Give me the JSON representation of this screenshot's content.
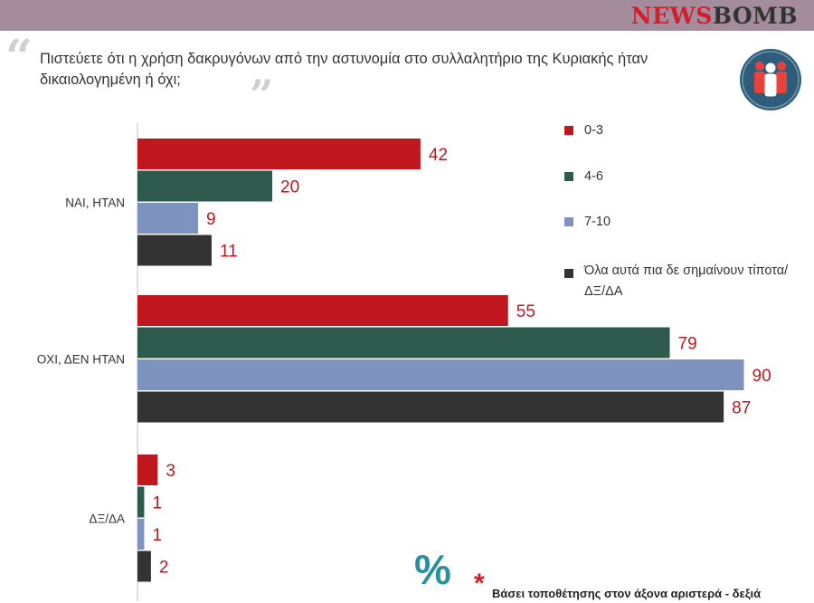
{
  "header": {
    "brand_news": "NEWS",
    "brand_bomb": "BOMB"
  },
  "question": {
    "text": "Πιστεύετε ότι η χρήση δακρυγόνων από την αστυνομία στο συλλαλητήριο της Κυριακής ήταν δικαιολογημένη ή όχι;",
    "open_quote_glyph": "“",
    "close_quote_glyph": "”"
  },
  "icons": {
    "people": "people-group-icon",
    "percent": "percent-icon",
    "asterisk": "asterisk-icon"
  },
  "percent_symbol": "%",
  "footnote": {
    "star": "*",
    "text": "Βάσει τοποθέτησης στον άξονα αριστερά - δεξιά"
  },
  "colors": {
    "topbar": "#a48c9c",
    "series_0_3": "#c0161e",
    "series_4_6": "#2e5a4e",
    "series_7_10": "#7d93be",
    "series_all": "#333333",
    "value_label": "#c0161e",
    "people_badge": "#2d5d7b"
  },
  "chart_data": {
    "type": "bar",
    "orientation": "horizontal",
    "categories": [
      "ΝΑΙ, ΗΤΑΝ",
      "ΟΧΙ, ΔΕΝ ΗΤΑΝ",
      "ΔΞ/ΔΑ"
    ],
    "series": [
      {
        "name": "0-3",
        "color": "#c0161e",
        "values": [
          42,
          55,
          3
        ]
      },
      {
        "name": "4-6",
        "color": "#2e5a4e",
        "values": [
          20,
          79,
          1
        ]
      },
      {
        "name": "7-10",
        "color": "#7d93be",
        "values": [
          9,
          90,
          1
        ]
      },
      {
        "name": "Όλα αυτά πια δε σημαίνουν τίποτα/ΔΞ/ΔΑ",
        "color": "#333333",
        "values": [
          11,
          87,
          2
        ]
      }
    ],
    "xlim": [
      0,
      100
    ],
    "legend_position": "right",
    "grid": false,
    "data_labels": true
  }
}
